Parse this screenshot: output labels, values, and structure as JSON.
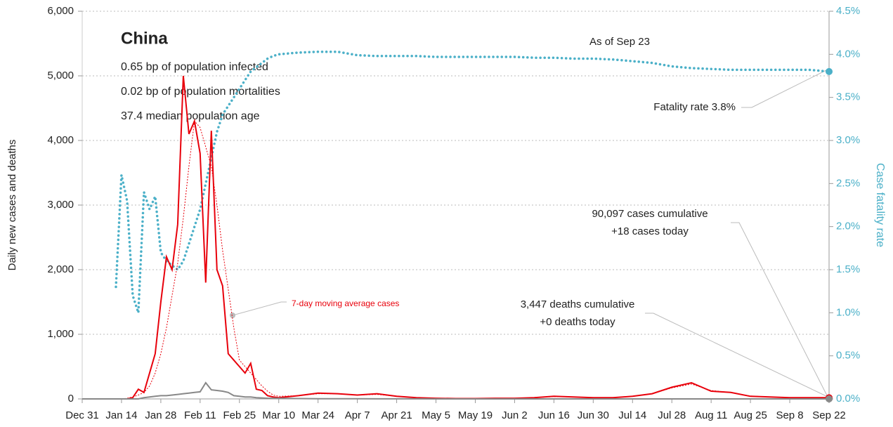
{
  "chart_data": {
    "type": "line",
    "title": "China",
    "notes": [
      "0.65 bp of population infected",
      "0.02 bp of population mortalities",
      "37.4 median population age"
    ],
    "annotations": [
      "As of Sep 23",
      "Fatality rate 3.8%",
      "90,097 cases cumulative",
      "+18 cases today",
      "3,447 deaths cumulative",
      "+0 deaths today"
    ],
    "ylabel": "Daily new cases and deaths",
    "y2label": "Case fatality rate",
    "x": [
      0,
      7,
      12,
      14,
      16,
      18,
      20,
      22,
      24,
      26,
      28,
      30,
      32,
      34,
      36,
      38,
      40,
      42,
      44,
      46,
      48,
      50,
      52,
      54,
      56,
      58,
      60,
      62,
      64,
      66,
      68,
      70,
      77,
      84,
      91,
      98,
      105,
      112,
      119,
      126,
      133,
      140,
      147,
      154,
      161,
      168,
      175,
      182,
      189,
      196,
      203,
      210,
      217,
      224,
      231,
      238,
      245,
      252,
      259,
      266
    ],
    "xlim": [
      0,
      266
    ],
    "xticks": [
      {
        "value": 0,
        "label": "Dec 31"
      },
      {
        "value": 14,
        "label": "Jan 14"
      },
      {
        "value": 28,
        "label": "Jan 28"
      },
      {
        "value": 42,
        "label": "Feb 11"
      },
      {
        "value": 56,
        "label": "Feb 25"
      },
      {
        "value": 70,
        "label": "Mar 10"
      },
      {
        "value": 84,
        "label": "Mar 24"
      },
      {
        "value": 98,
        "label": "Apr 7"
      },
      {
        "value": 112,
        "label": "Apr 21"
      },
      {
        "value": 126,
        "label": "May 5"
      },
      {
        "value": 140,
        "label": "May 19"
      },
      {
        "value": 154,
        "label": "Jun 2"
      },
      {
        "value": 168,
        "label": "Jun 16"
      },
      {
        "value": 182,
        "label": "Jun 30"
      },
      {
        "value": 196,
        "label": "Jul 14"
      },
      {
        "value": 210,
        "label": "Jul 28"
      },
      {
        "value": 224,
        "label": "Aug 11"
      },
      {
        "value": 238,
        "label": "Aug 25"
      },
      {
        "value": 252,
        "label": "Sep 8"
      },
      {
        "value": 266,
        "label": "Sep 22"
      }
    ],
    "ylim": [
      0,
      6000
    ],
    "yticks": [
      0,
      {
        "value": 1000,
        "label": "1,000"
      },
      {
        "value": 2000,
        "label": "2,000"
      },
      {
        "value": 3000,
        "label": "3,000"
      },
      {
        "value": 4000,
        "label": "4,000"
      },
      {
        "value": 5000,
        "label": "5,000"
      },
      {
        "value": 6000,
        "label": "6,000"
      }
    ],
    "y2lim": [
      0,
      4.5
    ],
    "y2ticks": [
      {
        "value": 0,
        "label": "0.0%"
      },
      {
        "value": 0.5,
        "label": "0.5%"
      },
      {
        "value": 1,
        "label": "1.0%"
      },
      {
        "value": 1.5,
        "label": "1.5%"
      },
      {
        "value": 2,
        "label": "2.0%"
      },
      {
        "value": 2.5,
        "label": "2.5%"
      },
      {
        "value": 3,
        "label": "3.0%"
      },
      {
        "value": 3.5,
        "label": "3.5%"
      },
      {
        "value": 4,
        "label": "4.0%"
      },
      {
        "value": 4.5,
        "label": "4.5%"
      }
    ],
    "grid": true,
    "series": [
      {
        "color": "#4bb0c8",
        "axis": "y2",
        "style": "dotted",
        "values": [
          null,
          null,
          1.3,
          2.6,
          2.3,
          1.2,
          1.0,
          2.4,
          2.2,
          2.35,
          1.7,
          1.6,
          1.55,
          1.5,
          1.6,
          1.8,
          2.0,
          2.2,
          2.5,
          2.8,
          3.1,
          3.3,
          3.4,
          3.5,
          3.6,
          3.7,
          3.8,
          3.85,
          3.9,
          3.95,
          3.98,
          4.0,
          4.02,
          4.03,
          4.03,
          3.99,
          3.98,
          3.98,
          3.98,
          3.97,
          3.97,
          3.97,
          3.97,
          3.97,
          3.96,
          3.96,
          3.95,
          3.95,
          3.94,
          3.92,
          3.9,
          3.86,
          3.84,
          3.83,
          3.82,
          3.82,
          3.82,
          3.82,
          3.82,
          3.8
        ]
      },
      {
        "name": "7-day moving average cases",
        "color": "#e8000b",
        "style": "thin-dotted",
        "values": [
          0,
          0,
          0,
          0,
          10,
          30,
          60,
          100,
          200,
          400,
          700,
          1100,
          1600,
          2100,
          2800,
          3600,
          4300,
          4200,
          3900,
          3600,
          3000,
          2300,
          1700,
          1100,
          600,
          500,
          400,
          300,
          200,
          120,
          60,
          40,
          50,
          80,
          80,
          60,
          70,
          40,
          20,
          10,
          5,
          5,
          10,
          10,
          20,
          35,
          30,
          20,
          20,
          40,
          80,
          170,
          230,
          130,
          100,
          45,
          30,
          20,
          20,
          18
        ]
      },
      {
        "color": "#e8000b",
        "style": "solid",
        "values": [
          0,
          0,
          0,
          0,
          0,
          20,
          150,
          100,
          400,
          700,
          1500,
          2200,
          2000,
          2700,
          5000,
          4100,
          4300,
          3800,
          1800,
          4150,
          2000,
          1750,
          700,
          600,
          500,
          400,
          550,
          150,
          130,
          50,
          30,
          20,
          50,
          90,
          80,
          60,
          80,
          40,
          20,
          10,
          5,
          5,
          10,
          10,
          20,
          40,
          30,
          20,
          20,
          40,
          80,
          180,
          250,
          120,
          100,
          40,
          30,
          20,
          20,
          18
        ]
      },
      {
        "color": "#888888",
        "style": "solid",
        "values": [
          0,
          0,
          0,
          0,
          0,
          0,
          0,
          20,
          30,
          40,
          50,
          50,
          60,
          70,
          80,
          90,
          100,
          110,
          250,
          140,
          130,
          120,
          100,
          50,
          40,
          30,
          30,
          20,
          15,
          10,
          10,
          10,
          5,
          3,
          2,
          2,
          1,
          1,
          1,
          0,
          0,
          0,
          0,
          0,
          0,
          0,
          0,
          0,
          0,
          0,
          0,
          0,
          0,
          0,
          0,
          0,
          0,
          0,
          0,
          0
        ]
      }
    ]
  }
}
